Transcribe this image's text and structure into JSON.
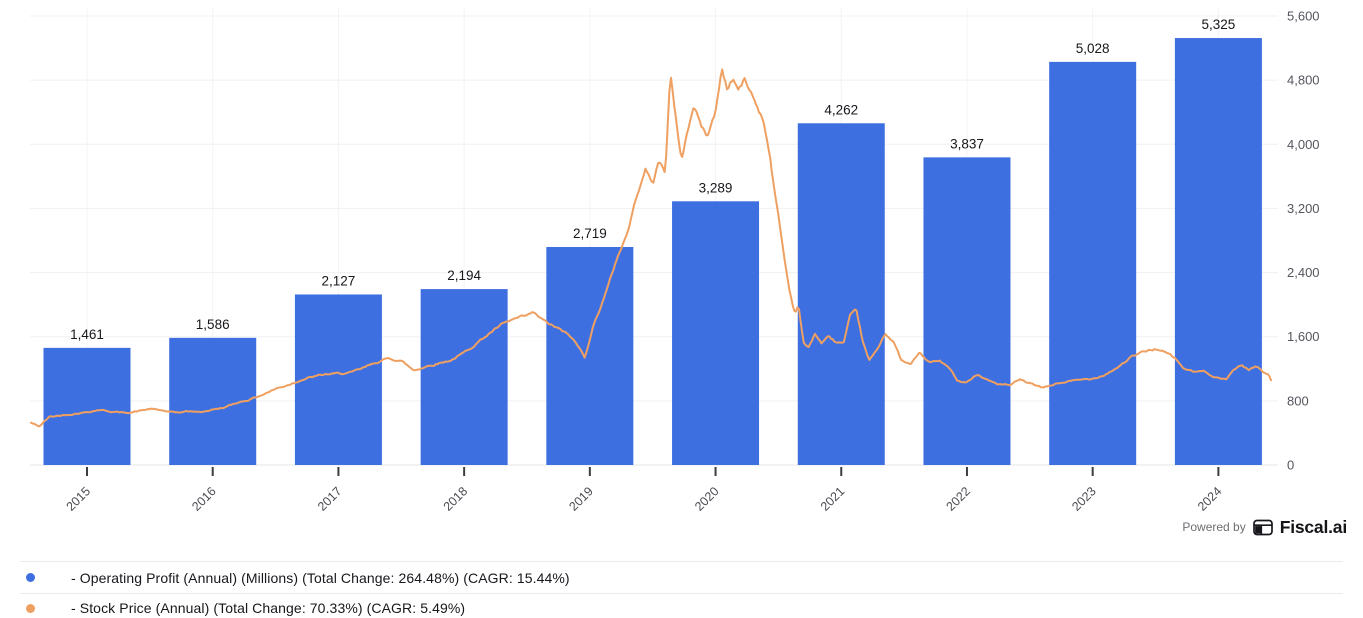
{
  "chart_data": {
    "type": "combo-bar-line",
    "title": "",
    "categories": [
      "2015",
      "2016",
      "2017",
      "2018",
      "2019",
      "2020",
      "2021",
      "2022",
      "2023",
      "2024"
    ],
    "series": [
      {
        "name": "Operating Profit (Annual) (Millions)",
        "type": "bar",
        "color": "#3E6FE1",
        "values": [
          1461,
          1586,
          2127,
          2194,
          2719,
          3289,
          4262,
          3837,
          5028,
          5325
        ],
        "labels": [
          "1,461",
          "1,586",
          "2,127",
          "2,194",
          "2,719",
          "3,289",
          "4,262",
          "3,837",
          "5,028",
          "5,325"
        ]
      },
      {
        "name": "Stock Price (Annual)",
        "type": "line",
        "color": "#EFA061",
        "anchors": [
          [
            2014.55,
            530
          ],
          [
            2014.62,
            480
          ],
          [
            2014.7,
            600
          ],
          [
            2014.8,
            620
          ],
          [
            2014.9,
            640
          ],
          [
            2015.0,
            660
          ],
          [
            2015.1,
            690
          ],
          [
            2015.2,
            665
          ],
          [
            2015.3,
            650
          ],
          [
            2015.4,
            670
          ],
          [
            2015.5,
            700
          ],
          [
            2015.6,
            680
          ],
          [
            2015.7,
            650
          ],
          [
            2015.8,
            670
          ],
          [
            2015.9,
            660
          ],
          [
            2016.0,
            690
          ],
          [
            2016.1,
            720
          ],
          [
            2016.2,
            780
          ],
          [
            2016.3,
            820
          ],
          [
            2016.4,
            880
          ],
          [
            2016.5,
            950
          ],
          [
            2016.6,
            1000
          ],
          [
            2016.7,
            1060
          ],
          [
            2016.8,
            1100
          ],
          [
            2016.9,
            1130
          ],
          [
            2017.0,
            1140
          ],
          [
            2017.1,
            1150
          ],
          [
            2017.2,
            1210
          ],
          [
            2017.3,
            1280
          ],
          [
            2017.4,
            1330
          ],
          [
            2017.5,
            1300
          ],
          [
            2017.6,
            1180
          ],
          [
            2017.7,
            1230
          ],
          [
            2017.8,
            1270
          ],
          [
            2017.9,
            1310
          ],
          [
            2018.0,
            1400
          ],
          [
            2018.1,
            1520
          ],
          [
            2018.2,
            1640
          ],
          [
            2018.3,
            1750
          ],
          [
            2018.4,
            1820
          ],
          [
            2018.5,
            1860
          ],
          [
            2018.55,
            1900
          ],
          [
            2018.65,
            1780
          ],
          [
            2018.75,
            1700
          ],
          [
            2018.85,
            1600
          ],
          [
            2018.92,
            1450
          ],
          [
            2018.96,
            1340
          ],
          [
            2019.02,
            1700
          ],
          [
            2019.08,
            1950
          ],
          [
            2019.15,
            2250
          ],
          [
            2019.22,
            2600
          ],
          [
            2019.3,
            2900
          ],
          [
            2019.38,
            3400
          ],
          [
            2019.44,
            3700
          ],
          [
            2019.5,
            3500
          ],
          [
            2019.55,
            3800
          ],
          [
            2019.6,
            3650
          ],
          [
            2019.64,
            4890
          ],
          [
            2019.68,
            4350
          ],
          [
            2019.73,
            3800
          ],
          [
            2019.78,
            4200
          ],
          [
            2019.83,
            4480
          ],
          [
            2019.88,
            4250
          ],
          [
            2019.93,
            4100
          ],
          [
            2020.0,
            4400
          ],
          [
            2020.05,
            4950
          ],
          [
            2020.09,
            4700
          ],
          [
            2020.14,
            4820
          ],
          [
            2020.18,
            4680
          ],
          [
            2020.23,
            4800
          ],
          [
            2020.28,
            4650
          ],
          [
            2020.33,
            4480
          ],
          [
            2020.38,
            4300
          ],
          [
            2020.43,
            3900
          ],
          [
            2020.47,
            3400
          ],
          [
            2020.51,
            3000
          ],
          [
            2020.55,
            2550
          ],
          [
            2020.59,
            2160
          ],
          [
            2020.63,
            1900
          ],
          [
            2020.66,
            2000
          ],
          [
            2020.7,
            1520
          ],
          [
            2020.74,
            1460
          ],
          [
            2020.79,
            1640
          ],
          [
            2020.84,
            1520
          ],
          [
            2020.9,
            1600
          ],
          [
            2020.96,
            1530
          ],
          [
            2021.02,
            1520
          ],
          [
            2021.07,
            1850
          ],
          [
            2021.12,
            1930
          ],
          [
            2021.17,
            1550
          ],
          [
            2021.22,
            1300
          ],
          [
            2021.28,
            1420
          ],
          [
            2021.35,
            1650
          ],
          [
            2021.42,
            1520
          ],
          [
            2021.48,
            1300
          ],
          [
            2021.55,
            1250
          ],
          [
            2021.62,
            1400
          ],
          [
            2021.7,
            1280
          ],
          [
            2021.78,
            1300
          ],
          [
            2021.85,
            1220
          ],
          [
            2021.93,
            1050
          ],
          [
            2022.0,
            1040
          ],
          [
            2022.08,
            1130
          ],
          [
            2022.16,
            1060
          ],
          [
            2022.25,
            1010
          ],
          [
            2022.34,
            990
          ],
          [
            2022.42,
            1060
          ],
          [
            2022.5,
            1020
          ],
          [
            2022.6,
            960
          ],
          [
            2022.7,
            1010
          ],
          [
            2022.8,
            1040
          ],
          [
            2022.9,
            1060
          ],
          [
            2023.0,
            1080
          ],
          [
            2023.1,
            1130
          ],
          [
            2023.2,
            1220
          ],
          [
            2023.3,
            1340
          ],
          [
            2023.4,
            1410
          ],
          [
            2023.5,
            1450
          ],
          [
            2023.58,
            1400
          ],
          [
            2023.65,
            1340
          ],
          [
            2023.72,
            1210
          ],
          [
            2023.8,
            1160
          ],
          [
            2023.88,
            1170
          ],
          [
            2023.95,
            1120
          ],
          [
            2024.0,
            1090
          ],
          [
            2024.06,
            1060
          ],
          [
            2024.12,
            1190
          ],
          [
            2024.18,
            1250
          ],
          [
            2024.24,
            1190
          ],
          [
            2024.3,
            1230
          ],
          [
            2024.36,
            1160
          ],
          [
            2024.4,
            1140
          ],
          [
            2024.44,
            975
          ],
          [
            2024.47,
            990
          ]
        ]
      }
    ],
    "y_axis": {
      "position": "right",
      "min": 0,
      "max": 5600,
      "ticks": [
        {
          "value": 0,
          "label": "0"
        },
        {
          "value": 800,
          "label": "800"
        },
        {
          "value": 1600,
          "label": "1,600"
        },
        {
          "value": 2400,
          "label": "2,400"
        },
        {
          "value": 3200,
          "label": "3,200"
        },
        {
          "value": 4000,
          "label": "4,000"
        },
        {
          "value": 4800,
          "label": "4,800"
        },
        {
          "value": 5600,
          "label": "5,600"
        }
      ]
    },
    "grid": true,
    "legend_position": "bottom"
  },
  "legend": {
    "items": [
      {
        "label": "- Operating Profit (Annual) (Millions) (Total Change: 264.48%) (CAGR: 15.44%)",
        "color": "#3E6FE1"
      },
      {
        "label": "- Stock Price (Annual) (Total Change: 70.33%) (CAGR: 5.49%)",
        "color": "#EFA061"
      }
    ]
  },
  "footer": {
    "powered_by": "Powered by",
    "brand": "Fiscal.ai"
  },
  "colors": {
    "bar": "#3E6FE1",
    "line": "#EFA061",
    "grid_h": "#f0f0f1",
    "grid_v": "#f4f4f5",
    "axis": "#e4e4e7",
    "tick": "#3c3c43",
    "axis_label": "#55565e",
    "bar_label": "#17171c"
  }
}
